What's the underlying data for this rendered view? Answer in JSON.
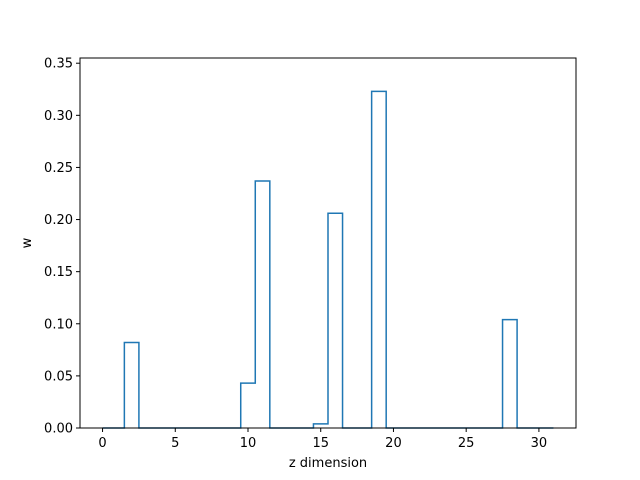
{
  "chart_data": {
    "type": "line",
    "style": "step",
    "xlabel": "z dimension",
    "ylabel": "w",
    "xlim": [
      -1.55,
      32.55
    ],
    "ylim": [
      0.0,
      0.355
    ],
    "xticks": [
      0,
      5,
      10,
      15,
      20,
      25,
      30
    ],
    "xtick_labels": [
      "0",
      "5",
      "10",
      "15",
      "20",
      "25",
      "30"
    ],
    "yticks": [
      0.0,
      0.05,
      0.1,
      0.15,
      0.2,
      0.25,
      0.3,
      0.35
    ],
    "ytick_labels": [
      "0.00",
      "0.05",
      "0.10",
      "0.15",
      "0.20",
      "0.25",
      "0.30",
      "0.35"
    ],
    "grid": false,
    "line_color": "#1f77b4",
    "x": [
      0,
      1,
      2,
      3,
      4,
      5,
      6,
      7,
      8,
      9,
      10,
      11,
      12,
      13,
      14,
      15,
      16,
      17,
      18,
      19,
      20,
      21,
      22,
      23,
      24,
      25,
      26,
      27,
      28,
      29,
      30,
      31
    ],
    "values": [
      0,
      0,
      0.082,
      0,
      0,
      0,
      0,
      0,
      0,
      0,
      0.043,
      0.237,
      0,
      0,
      0,
      0.004,
      0.206,
      0,
      0,
      0.323,
      0,
      0,
      0,
      0,
      0,
      0,
      0,
      0,
      0.104,
      0,
      0,
      0
    ]
  }
}
